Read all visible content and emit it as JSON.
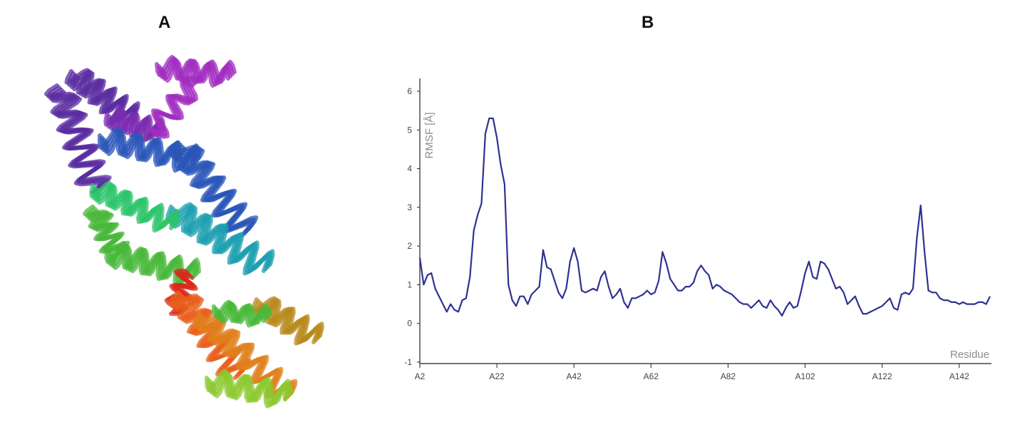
{
  "panels": {
    "a_label": "A",
    "b_label": "B"
  },
  "protein": {
    "colors": [
      "#5a2ca0",
      "#7a2cb0",
      "#a02cc0",
      "#2a55b8",
      "#1e9fb0",
      "#2cc46a",
      "#48b83a",
      "#d8281c",
      "#e8601c",
      "#e0801c",
      "#b88a1c",
      "#8cc830"
    ]
  },
  "chart_data": {
    "type": "line",
    "title": "",
    "xlabel": "Residue",
    "ylabel": "RMSF [Å]",
    "ylim": [
      -1,
      6
    ],
    "yticks": [
      "-1",
      "0",
      "1",
      "2",
      "3",
      "4",
      "5",
      "6"
    ],
    "xlim": [
      2,
      150
    ],
    "xticks": [
      {
        "label": "A2",
        "value": 2
      },
      {
        "label": "A22",
        "value": 22
      },
      {
        "label": "A42",
        "value": 42
      },
      {
        "label": "A62",
        "value": 62
      },
      {
        "label": "A82",
        "value": 82
      },
      {
        "label": "A102",
        "value": 102
      },
      {
        "label": "A122",
        "value": 122
      },
      {
        "label": "A142",
        "value": 142
      }
    ],
    "grid": false,
    "series": [
      {
        "color": "#2e3192",
        "x": [
          2,
          3,
          4,
          5,
          6,
          7,
          8,
          9,
          10,
          11,
          12,
          13,
          14,
          15,
          16,
          17,
          18,
          19,
          20,
          21,
          22,
          23,
          24,
          25,
          26,
          27,
          28,
          29,
          30,
          31,
          32,
          33,
          34,
          35,
          36,
          37,
          38,
          39,
          40,
          41,
          42,
          43,
          44,
          45,
          46,
          47,
          48,
          49,
          50,
          51,
          52,
          53,
          54,
          55,
          56,
          57,
          58,
          59,
          60,
          61,
          62,
          63,
          64,
          65,
          66,
          67,
          68,
          69,
          70,
          71,
          72,
          73,
          74,
          75,
          76,
          77,
          78,
          79,
          80,
          81,
          82,
          83,
          84,
          85,
          86,
          87,
          88,
          89,
          90,
          91,
          92,
          93,
          94,
          95,
          96,
          97,
          98,
          99,
          100,
          101,
          102,
          103,
          104,
          105,
          106,
          107,
          108,
          109,
          110,
          111,
          112,
          113,
          114,
          115,
          116,
          117,
          118,
          119,
          120,
          121,
          122,
          123,
          124,
          125,
          126,
          127,
          128,
          129,
          130,
          131,
          132,
          133,
          134,
          135,
          136,
          137,
          138,
          139,
          140,
          141,
          142,
          143,
          144,
          145,
          146,
          147,
          148,
          149,
          150
        ],
        "y": [
          1.7,
          1.0,
          1.25,
          1.3,
          0.9,
          0.7,
          0.5,
          0.3,
          0.5,
          0.35,
          0.3,
          0.6,
          0.65,
          1.2,
          2.4,
          2.8,
          3.1,
          4.9,
          5.3,
          5.3,
          4.8,
          4.1,
          3.6,
          1.0,
          0.6,
          0.45,
          0.7,
          0.7,
          0.5,
          0.75,
          0.85,
          0.95,
          1.9,
          1.45,
          1.4,
          1.1,
          0.8,
          0.65,
          0.9,
          1.6,
          1.95,
          1.6,
          0.85,
          0.8,
          0.85,
          0.9,
          0.85,
          1.2,
          1.35,
          0.95,
          0.65,
          0.75,
          0.9,
          0.55,
          0.4,
          0.65,
          0.65,
          0.7,
          0.75,
          0.85,
          0.75,
          0.8,
          1.1,
          1.85,
          1.55,
          1.15,
          1.0,
          0.85,
          0.85,
          0.95,
          0.95,
          1.05,
          1.35,
          1.5,
          1.35,
          1.25,
          0.9,
          1.0,
          0.95,
          0.85,
          0.8,
          0.75,
          0.65,
          0.55,
          0.5,
          0.5,
          0.4,
          0.5,
          0.6,
          0.45,
          0.4,
          0.6,
          0.45,
          0.35,
          0.2,
          0.4,
          0.55,
          0.4,
          0.45,
          0.85,
          1.3,
          1.6,
          1.2,
          1.15,
          1.6,
          1.55,
          1.4,
          1.15,
          0.9,
          0.95,
          0.8,
          0.5,
          0.6,
          0.7,
          0.45,
          0.25,
          0.25,
          0.3,
          0.35,
          0.4,
          0.45,
          0.55,
          0.65,
          0.4,
          0.35,
          0.75,
          0.8,
          0.75,
          0.9,
          2.2,
          3.05,
          1.85,
          0.85,
          0.8,
          0.8,
          0.65,
          0.6,
          0.6,
          0.55,
          0.55,
          0.5,
          0.55,
          0.5,
          0.5,
          0.5,
          0.55,
          0.55,
          0.5,
          0.7
        ]
      }
    ]
  }
}
